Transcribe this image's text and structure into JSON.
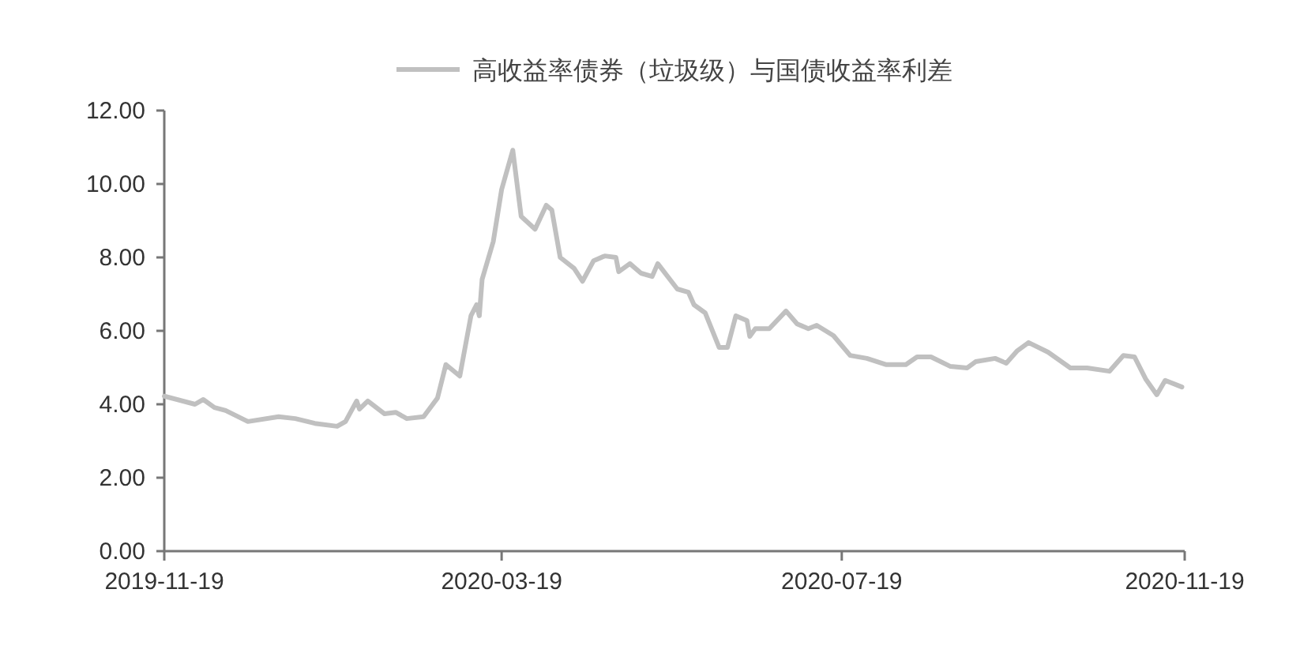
{
  "chart_data": {
    "type": "line",
    "legend": "top",
    "line_style": "solid",
    "xlim": [
      "2019-11-19",
      "2020-11-19"
    ],
    "xticks": [
      "2019-11-19",
      "2020-03-19",
      "2020-07-19",
      "2020-11-19"
    ],
    "ylim": [
      0,
      12
    ],
    "yticks": [
      {
        "value": 0,
        "label": "0.00"
      },
      {
        "value": 2,
        "label": "2.00"
      },
      {
        "value": 4,
        "label": "4.00"
      },
      {
        "value": 6,
        "label": "6.00"
      },
      {
        "value": 8,
        "label": "8.00"
      },
      {
        "value": 10,
        "label": "10.00"
      },
      {
        "value": 12,
        "label": "12.00"
      }
    ],
    "x": [
      "2019-11-19",
      "2019-11-30",
      "2019-12-03",
      "2019-12-07",
      "2019-12-11",
      "2019-12-19",
      "2019-12-30",
      "2020-01-05",
      "2020-01-12",
      "2020-01-20",
      "2020-01-23",
      "2020-01-27",
      "2020-01-28",
      "2020-01-31",
      "2020-02-06",
      "2020-02-10",
      "2020-02-14",
      "2020-02-20",
      "2020-02-25",
      "2020-02-28",
      "2020-03-04",
      "2020-03-08",
      "2020-03-10",
      "2020-03-11",
      "2020-03-12",
      "2020-03-16",
      "2020-03-19",
      "2020-03-23",
      "2020-03-26",
      "2020-03-31",
      "2020-04-04",
      "2020-04-06",
      "2020-04-09",
      "2020-04-14",
      "2020-04-17",
      "2020-04-21",
      "2020-04-25",
      "2020-04-29",
      "2020-04-30",
      "2020-05-04",
      "2020-05-08",
      "2020-05-12",
      "2020-05-14",
      "2020-05-21",
      "2020-05-25",
      "2020-05-27",
      "2020-05-31",
      "2020-06-05",
      "2020-06-08",
      "2020-06-11",
      "2020-06-15",
      "2020-06-16",
      "2020-06-18",
      "2020-06-23",
      "2020-06-29",
      "2020-07-03",
      "2020-07-07",
      "2020-07-10",
      "2020-07-16",
      "2020-07-22",
      "2020-07-28",
      "2020-08-04",
      "2020-08-11",
      "2020-08-15",
      "2020-08-20",
      "2020-08-27",
      "2020-09-02",
      "2020-09-05",
      "2020-09-12",
      "2020-09-16",
      "2020-09-20",
      "2020-09-24",
      "2020-10-01",
      "2020-10-09",
      "2020-10-15",
      "2020-10-23",
      "2020-10-28",
      "2020-11-01",
      "2020-11-05",
      "2020-11-09",
      "2020-11-12",
      "2020-11-18"
    ],
    "series": [
      {
        "name": "高收益率债券（垃圾级）与国债收益率利差",
        "color": "#c0c0c0",
        "values": [
          4.22,
          4.0,
          4.13,
          3.91,
          3.83,
          3.53,
          3.66,
          3.61,
          3.48,
          3.4,
          3.53,
          4.09,
          3.87,
          4.09,
          3.74,
          3.78,
          3.61,
          3.66,
          4.17,
          5.08,
          4.77,
          6.41,
          6.71,
          6.41,
          7.4,
          8.43,
          9.85,
          10.92,
          9.12,
          8.77,
          9.42,
          9.29,
          8.0,
          7.7,
          7.35,
          7.91,
          8.04,
          8.0,
          7.61,
          7.83,
          7.57,
          7.48,
          7.83,
          7.14,
          7.05,
          6.71,
          6.49,
          5.55,
          5.55,
          6.41,
          6.28,
          5.85,
          6.06,
          6.06,
          6.54,
          6.19,
          6.06,
          6.15,
          5.87,
          5.33,
          5.25,
          5.08,
          5.08,
          5.29,
          5.29,
          5.03,
          4.99,
          5.16,
          5.25,
          5.12,
          5.46,
          5.68,
          5.42,
          4.99,
          4.99,
          4.9,
          5.33,
          5.29,
          4.69,
          4.26,
          4.65,
          4.47
        ]
      }
    ]
  }
}
